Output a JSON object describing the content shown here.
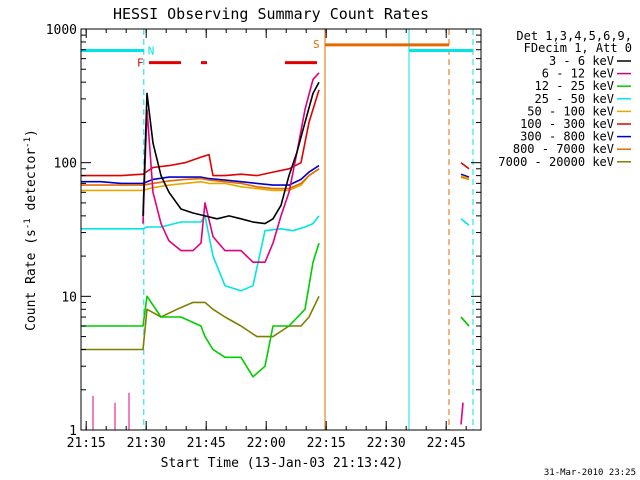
{
  "chart_data": {
    "type": "line",
    "title": "HESSI Observing Summary Count Rates",
    "xlabel": "Start Time (13-Jan-03 21:13:42)",
    "ylabel_main": "Count Rate (s",
    "ylabel_sup1": "-1",
    "ylabel_mid": " detector",
    "ylabel_sup2": "-1",
    "ylabel_end": ")",
    "yscale": "log",
    "xlim_minutes": [
      0,
      100
    ],
    "ylim": [
      1,
      1000
    ],
    "x_ticks": [
      {
        "label": "21:15",
        "value": 1.3
      },
      {
        "label": "21:30",
        "value": 16.3
      },
      {
        "label": "21:45",
        "value": 31.3
      },
      {
        "label": "22:00",
        "value": 46.3
      },
      {
        "label": "22:15",
        "value": 61.3
      },
      {
        "label": "22:30",
        "value": 76.3
      },
      {
        "label": "22:45",
        "value": 91.3
      }
    ],
    "y_ticks": [
      {
        "label": "1",
        "value": 1
      },
      {
        "label": "10",
        "value": 10
      },
      {
        "label": "100",
        "value": 100
      },
      {
        "label": "1000",
        "value": 1000
      }
    ],
    "legend_position": "right",
    "legend_header": [
      "Det 1,3,4,5,6,9,",
      "FDecim 1, Att 0"
    ],
    "series": [
      {
        "name": "3 - 6 keV",
        "color": "#000000",
        "points": [
          [
            15.5,
            40
          ],
          [
            16.5,
            330
          ],
          [
            18,
            140
          ],
          [
            20,
            80
          ],
          [
            22,
            60
          ],
          [
            25,
            45
          ],
          [
            28,
            42
          ],
          [
            31,
            40
          ],
          [
            34,
            38
          ],
          [
            37,
            40
          ],
          [
            40,
            38
          ],
          [
            43,
            36
          ],
          [
            46,
            35
          ],
          [
            48,
            38
          ],
          [
            50,
            48
          ],
          [
            52,
            80
          ],
          [
            54,
            120
          ],
          [
            56,
            200
          ],
          [
            58,
            330
          ],
          [
            59.5,
            400
          ]
        ]
      },
      {
        "name": "6 - 12 keV",
        "color": "#e0007f",
        "points": [
          [
            15.5,
            35
          ],
          [
            16.5,
            250
          ],
          [
            18,
            60
          ],
          [
            20,
            35
          ],
          [
            22,
            26
          ],
          [
            25,
            22
          ],
          [
            28,
            22
          ],
          [
            30,
            25
          ],
          [
            31,
            50
          ],
          [
            33,
            28
          ],
          [
            36,
            22
          ],
          [
            40,
            22
          ],
          [
            43,
            18
          ],
          [
            46,
            18
          ],
          [
            48,
            25
          ],
          [
            50,
            40
          ],
          [
            52,
            60
          ],
          [
            54,
            120
          ],
          [
            56,
            250
          ],
          [
            58,
            420
          ],
          [
            59.5,
            470
          ]
        ]
      },
      {
        "name": "12 - 25 keV",
        "color": "#00cc00",
        "points": [
          [
            0,
            6
          ],
          [
            4,
            6
          ],
          [
            8,
            6
          ],
          [
            12,
            6
          ],
          [
            15.5,
            6
          ],
          [
            16.5,
            10
          ],
          [
            20,
            7
          ],
          [
            25,
            7
          ],
          [
            30,
            6
          ],
          [
            31,
            5
          ],
          [
            33,
            4
          ],
          [
            36,
            3.5
          ],
          [
            40,
            3.5
          ],
          [
            43,
            2.5
          ],
          [
            46,
            3
          ],
          [
            48,
            6
          ],
          [
            52,
            6
          ],
          [
            56,
            8
          ],
          [
            58,
            18
          ],
          [
            59.5,
            25
          ]
        ]
      },
      {
        "name": "25 - 50 keV",
        "color": "#00e5e5",
        "points": [
          [
            0,
            32
          ],
          [
            5,
            32
          ],
          [
            10,
            32
          ],
          [
            15.5,
            32
          ],
          [
            16.5,
            33
          ],
          [
            20,
            33
          ],
          [
            25,
            36
          ],
          [
            30,
            36
          ],
          [
            31,
            40
          ],
          [
            33,
            20
          ],
          [
            36,
            12
          ],
          [
            40,
            11
          ],
          [
            43,
            12
          ],
          [
            46,
            31
          ],
          [
            50,
            32
          ],
          [
            53,
            31
          ],
          [
            56,
            33
          ],
          [
            58,
            35
          ],
          [
            59.5,
            40
          ]
        ]
      },
      {
        "name": "50 - 100 keV",
        "color": "#e5a800",
        "points": [
          [
            0,
            62
          ],
          [
            5,
            62
          ],
          [
            10,
            62
          ],
          [
            15.5,
            62
          ],
          [
            18,
            65
          ],
          [
            22,
            68
          ],
          [
            26,
            70
          ],
          [
            30,
            72
          ],
          [
            32,
            70
          ],
          [
            36,
            70
          ],
          [
            40,
            66
          ],
          [
            44,
            64
          ],
          [
            48,
            62
          ],
          [
            52,
            62
          ],
          [
            55,
            68
          ],
          [
            57,
            80
          ],
          [
            59.5,
            90
          ]
        ]
      },
      {
        "name": "100 - 300 keV",
        "color": "#e00000",
        "points": [
          [
            0,
            80
          ],
          [
            5,
            80
          ],
          [
            10,
            80
          ],
          [
            15.5,
            82
          ],
          [
            18,
            92
          ],
          [
            22,
            95
          ],
          [
            26,
            100
          ],
          [
            30,
            110
          ],
          [
            32,
            115
          ],
          [
            33,
            80
          ],
          [
            36,
            80
          ],
          [
            40,
            82
          ],
          [
            44,
            80
          ],
          [
            48,
            85
          ],
          [
            52,
            90
          ],
          [
            55,
            100
          ],
          [
            57,
            200
          ],
          [
            59.5,
            350
          ]
        ]
      },
      {
        "name": "300 - 800 keV",
        "color": "#0000cc",
        "points": [
          [
            0,
            72
          ],
          [
            5,
            72
          ],
          [
            10,
            70
          ],
          [
            15.5,
            70
          ],
          [
            18,
            75
          ],
          [
            22,
            78
          ],
          [
            26,
            78
          ],
          [
            30,
            78
          ],
          [
            32,
            76
          ],
          [
            36,
            74
          ],
          [
            40,
            72
          ],
          [
            44,
            70
          ],
          [
            48,
            68
          ],
          [
            52,
            68
          ],
          [
            55,
            75
          ],
          [
            57,
            85
          ],
          [
            59.5,
            95
          ]
        ]
      },
      {
        "name": "800 - 7000 keV",
        "color": "#e56a00",
        "points": [
          [
            0,
            68
          ],
          [
            5,
            68
          ],
          [
            10,
            68
          ],
          [
            15.5,
            68
          ],
          [
            18,
            70
          ],
          [
            22,
            73
          ],
          [
            26,
            75
          ],
          [
            30,
            76
          ],
          [
            32,
            74
          ],
          [
            36,
            72
          ],
          [
            40,
            70
          ],
          [
            44,
            66
          ],
          [
            48,
            64
          ],
          [
            52,
            64
          ],
          [
            55,
            70
          ],
          [
            57,
            80
          ],
          [
            59.5,
            90
          ]
        ]
      },
      {
        "name": "7000 - 20000 keV",
        "color": "#7f7f00",
        "points": [
          [
            0,
            4
          ],
          [
            3,
            4
          ],
          [
            6,
            4
          ],
          [
            9,
            4
          ],
          [
            12,
            4
          ],
          [
            15.5,
            4
          ],
          [
            16.5,
            8
          ],
          [
            20,
            7
          ],
          [
            24,
            8
          ],
          [
            28,
            9
          ],
          [
            31,
            9
          ],
          [
            33,
            8
          ],
          [
            36,
            7
          ],
          [
            40,
            6
          ],
          [
            44,
            5
          ],
          [
            48,
            5
          ],
          [
            52,
            6
          ],
          [
            55,
            6
          ],
          [
            57,
            7
          ],
          [
            59.5,
            10
          ]
        ]
      }
    ],
    "late_segments": [
      {
        "series": "100 - 300 keV",
        "points": [
          [
            95,
            100
          ],
          [
            97,
            90
          ]
        ]
      },
      {
        "series": "300 - 800 keV",
        "points": [
          [
            95,
            82
          ],
          [
            97,
            78
          ]
        ]
      },
      {
        "series": "800 - 7000 keV",
        "points": [
          [
            95,
            78
          ],
          [
            97,
            75
          ]
        ]
      },
      {
        "series": "50 - 100 keV",
        "points": [
          [
            95,
            80
          ],
          [
            97,
            76
          ]
        ]
      },
      {
        "series": "25 - 50 keV",
        "points": [
          [
            95,
            38
          ],
          [
            97,
            34
          ]
        ]
      },
      {
        "series": "7000 - 20000 keV",
        "points": [
          [
            95,
            7
          ],
          [
            97,
            6
          ]
        ]
      },
      {
        "series": "12 - 25 keV",
        "points": [
          [
            95,
            7
          ],
          [
            97,
            6
          ]
        ]
      },
      {
        "series": "6 - 12 keV",
        "points": [
          [
            95,
            1.1
          ],
          [
            95.5,
            1.6
          ]
        ]
      }
    ],
    "early_spikes": [
      {
        "series": "6 - 12 keV",
        "x": 3,
        "y": 1.8
      },
      {
        "series": "6 - 12 keV",
        "x": 8.5,
        "y": 1.6
      },
      {
        "series": "6 - 12 keV",
        "x": 12,
        "y": 1.9
      }
    ],
    "flag_bars": [
      {
        "label": "N",
        "color": "#00e5e5",
        "y": 690,
        "segments": [
          [
            0,
            15.7
          ],
          [
            82,
            98
          ]
        ]
      },
      {
        "label": "F",
        "color": "#e00000",
        "y": 560,
        "segments": [
          [
            17,
            25
          ],
          [
            30,
            31.5
          ],
          [
            51,
            59
          ]
        ]
      },
      {
        "label": "S",
        "color": "#e56a00",
        "y": 760,
        "segments": [
          [
            61,
            92
          ]
        ]
      }
    ],
    "vertical_lines": [
      {
        "x": 15.7,
        "color": "#00e5e5",
        "style": "dashed"
      },
      {
        "x": 61,
        "color": "#e56a00",
        "style": "solid"
      },
      {
        "x": 82,
        "color": "#00e5e5",
        "style": "solid"
      },
      {
        "x": 92,
        "color": "#e56a00",
        "style": "dashed"
      },
      {
        "x": 98,
        "color": "#00e5e5",
        "style": "dashed"
      }
    ],
    "footer_stamp": "31-Mar-2010 23:25"
  }
}
